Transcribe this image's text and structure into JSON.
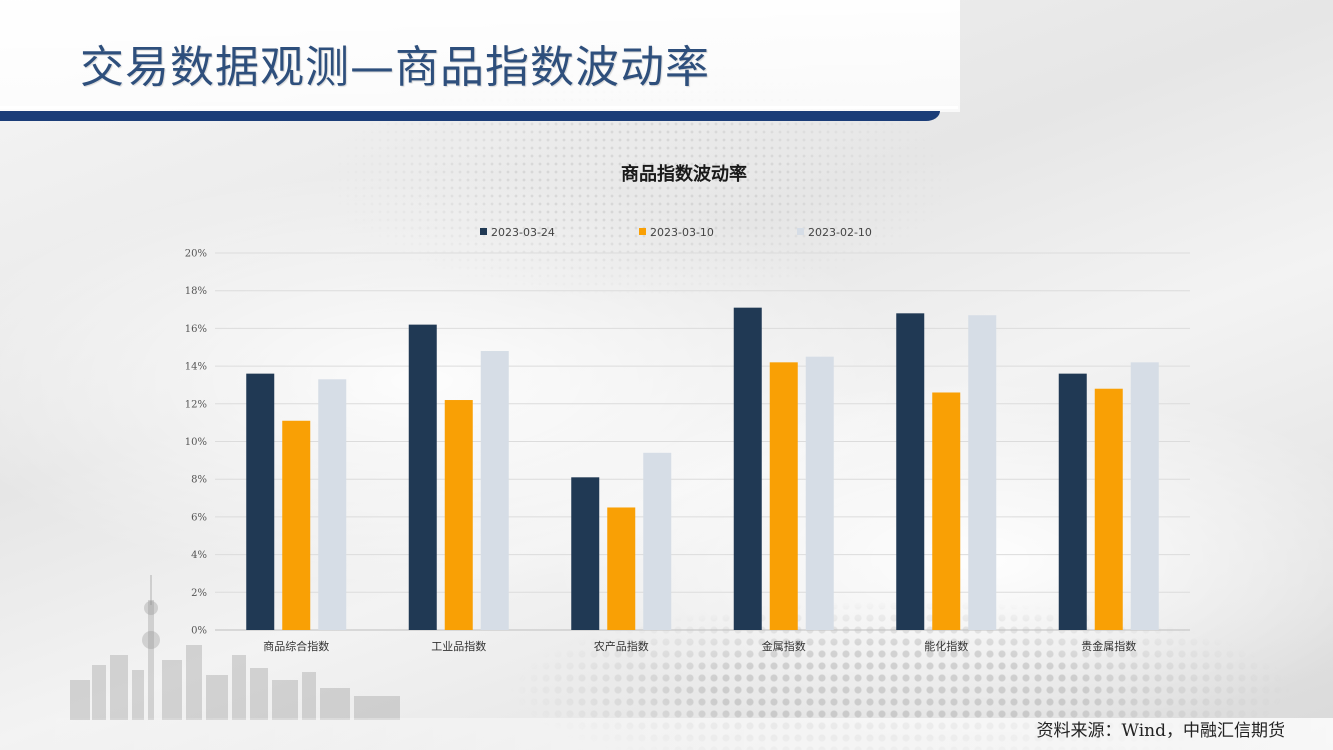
{
  "slide": {
    "title": "交易数据观测—商品指数波动率",
    "source": "资料来源：Wind，中融汇信期货"
  },
  "colors": {
    "title_text": "#2e4f7c",
    "title_bar": "#1b3d78",
    "series": [
      "#203954",
      "#f9a005",
      "#d6dde6"
    ]
  },
  "chart_data": {
    "type": "bar",
    "title": "商品指数波动率",
    "categories": [
      "商品综合指数",
      "工业品指数",
      "农产品指数",
      "金属指数",
      "能化指数",
      "贵金属指数"
    ],
    "series": [
      {
        "name": "2023-03-24",
        "values": [
          13.6,
          16.2,
          8.1,
          17.1,
          16.8,
          13.6
        ]
      },
      {
        "name": "2023-03-10",
        "values": [
          11.1,
          12.2,
          6.5,
          14.2,
          12.6,
          12.8
        ]
      },
      {
        "name": "2023-02-10",
        "values": [
          13.3,
          14.8,
          9.4,
          14.5,
          16.7,
          14.2
        ]
      }
    ],
    "ylim": [
      0,
      20
    ],
    "y_ticks": [
      "0%",
      "2%",
      "4%",
      "6%",
      "8%",
      "10%",
      "12%",
      "14%",
      "16%",
      "18%",
      "20%"
    ],
    "ylabel": "",
    "xlabel": "",
    "grid": true,
    "legend_position": "top"
  }
}
